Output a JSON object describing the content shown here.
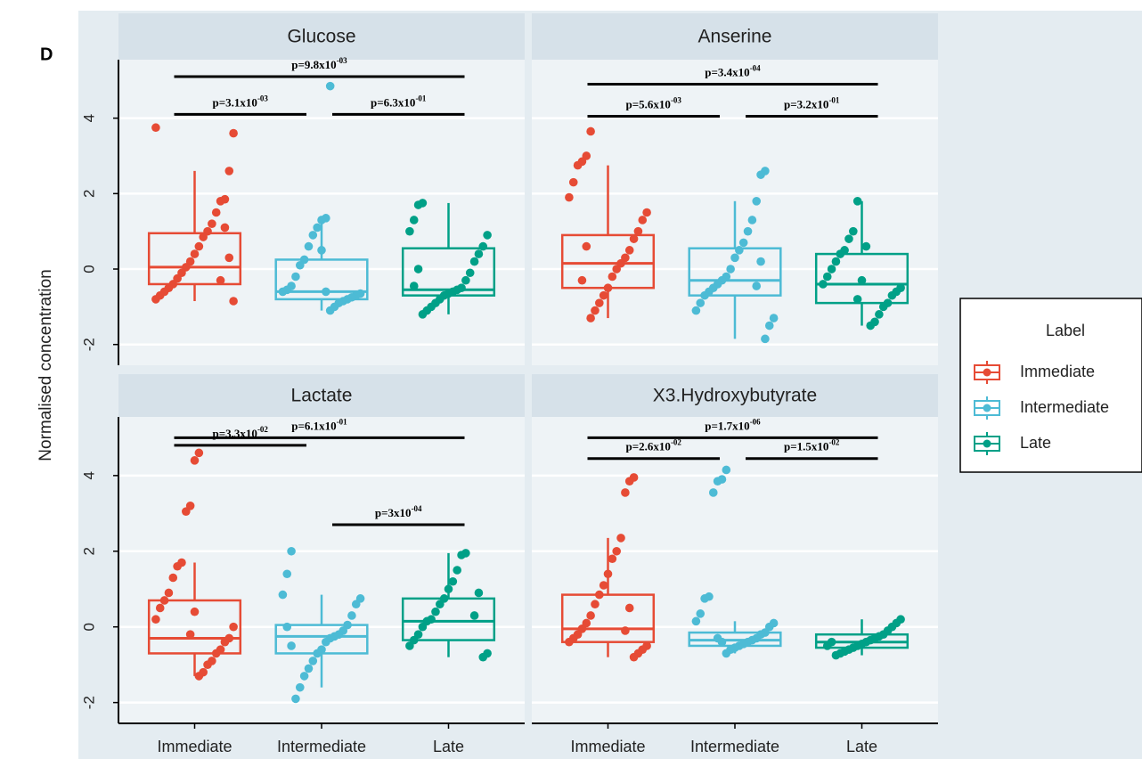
{
  "chart_data": {
    "type": "box",
    "figure_label": "D",
    "ylabel": "Normalised concentration",
    "legend_title": "Label",
    "categories": [
      "Immediate",
      "Intermediate",
      "Late"
    ],
    "series": [
      {
        "name": "Immediate",
        "color": "#e64b35"
      },
      {
        "name": "Intermediate",
        "color": "#4dbbd5"
      },
      {
        "name": "Late",
        "color": "#00a087"
      }
    ],
    "ylim": [
      -2.55,
      5.55
    ],
    "yticks": [
      -2,
      0,
      2,
      4
    ],
    "grid": true,
    "facets": [
      {
        "title": "Glucose",
        "boxes": [
          {
            "whislo": -0.85,
            "q1": -0.4,
            "med": 0.05,
            "q3": 0.95,
            "whishi": 2.6,
            "points": [
              3.75,
              3.6,
              2.6,
              1.85,
              1.8,
              1.5,
              1.2,
              1.0,
              0.85,
              0.6,
              0.4,
              0.2,
              0.05,
              -0.1,
              -0.25,
              -0.4,
              -0.5,
              -0.6,
              -0.7,
              -0.8,
              -0.85,
              0.3,
              1.1,
              -0.3
            ]
          },
          {
            "whislo": -1.1,
            "q1": -0.8,
            "med": -0.6,
            "q3": 0.25,
            "whishi": 1.35,
            "points": [
              4.85,
              1.35,
              1.3,
              1.1,
              0.9,
              0.6,
              0.25,
              0.1,
              -0.2,
              -0.45,
              -0.55,
              -0.6,
              -0.65,
              -0.7,
              -0.75,
              -0.8,
              -0.85,
              -0.9,
              -1.0,
              -1.1,
              -0.6,
              0.5
            ]
          },
          {
            "whislo": -1.2,
            "q1": -0.7,
            "med": -0.55,
            "q3": 0.55,
            "whishi": 1.75,
            "points": [
              1.75,
              1.7,
              1.3,
              1.0,
              0.9,
              0.6,
              0.4,
              0.2,
              -0.1,
              -0.3,
              -0.5,
              -0.55,
              -0.6,
              -0.65,
              -0.7,
              -0.8,
              -0.9,
              -1.0,
              -1.1,
              -1.2,
              0.0,
              -0.45
            ]
          }
        ],
        "annotations": [
          {
            "from": 0,
            "to": 2,
            "y": 5.1,
            "label": "p=9.8x10",
            "exponent": "-03"
          },
          {
            "from": 0,
            "to": 1,
            "y": 4.1,
            "label": "p=3.1x10",
            "exponent": "-03"
          },
          {
            "from": 1,
            "to": 2,
            "y": 4.1,
            "label": "p=6.3x10",
            "exponent": "-01"
          }
        ]
      },
      {
        "title": "Anserine",
        "boxes": [
          {
            "whislo": -1.3,
            "q1": -0.5,
            "med": 0.15,
            "q3": 0.9,
            "whishi": 2.75,
            "points": [
              3.65,
              3.0,
              2.85,
              2.75,
              2.3,
              1.9,
              1.5,
              1.3,
              1.0,
              0.8,
              0.5,
              0.3,
              0.15,
              0.0,
              -0.2,
              -0.5,
              -0.7,
              -0.9,
              -1.1,
              -1.3,
              0.6,
              -0.3
            ]
          },
          {
            "whislo": -1.85,
            "q1": -0.7,
            "med": -0.3,
            "q3": 0.55,
            "whishi": 1.8,
            "points": [
              2.6,
              2.5,
              1.8,
              1.3,
              1.0,
              0.7,
              0.5,
              0.3,
              0.0,
              -0.2,
              -0.3,
              -0.4,
              -0.5,
              -0.6,
              -0.7,
              -0.9,
              -1.1,
              -1.3,
              -1.5,
              -1.85,
              0.2,
              -0.45
            ]
          },
          {
            "whislo": -1.5,
            "q1": -0.9,
            "med": -0.4,
            "q3": 0.4,
            "whishi": 1.8,
            "points": [
              1.8,
              1.0,
              0.8,
              0.5,
              0.4,
              0.2,
              0.0,
              -0.2,
              -0.4,
              -0.5,
              -0.6,
              -0.7,
              -0.9,
              -1.0,
              -1.2,
              -1.4,
              -1.5,
              0.6,
              -0.3,
              -0.8
            ]
          }
        ],
        "annotations": [
          {
            "from": 0,
            "to": 2,
            "y": 4.9,
            "label": "p=3.4x10",
            "exponent": "-04"
          },
          {
            "from": 0,
            "to": 1,
            "y": 4.05,
            "label": "p=5.6x10",
            "exponent": "-03"
          },
          {
            "from": 1,
            "to": 2,
            "y": 4.05,
            "label": "p=3.2x10",
            "exponent": "-01"
          }
        ]
      },
      {
        "title": "Lactate",
        "boxes": [
          {
            "whislo": -1.3,
            "q1": -0.7,
            "med": -0.3,
            "q3": 0.7,
            "whishi": 1.7,
            "points": [
              4.6,
              4.4,
              3.2,
              3.05,
              1.7,
              1.6,
              1.3,
              0.9,
              0.7,
              0.5,
              0.2,
              0.0,
              -0.3,
              -0.4,
              -0.6,
              -0.7,
              -0.9,
              -1.0,
              -1.2,
              -1.3,
              0.4,
              -0.2
            ]
          },
          {
            "whislo": -1.6,
            "q1": -0.7,
            "med": -0.25,
            "q3": 0.05,
            "whishi": 0.85,
            "points": [
              2.0,
              1.4,
              0.85,
              0.75,
              0.6,
              0.3,
              0.05,
              -0.1,
              -0.2,
              -0.25,
              -0.3,
              -0.4,
              -0.6,
              -0.7,
              -0.9,
              -1.1,
              -1.3,
              -1.6,
              -1.9,
              -0.5,
              0.0
            ]
          },
          {
            "whislo": -0.8,
            "q1": -0.35,
            "med": 0.15,
            "q3": 0.75,
            "whishi": 1.95,
            "points": [
              1.95,
              1.9,
              1.5,
              1.2,
              1.0,
              0.75,
              0.6,
              0.4,
              0.2,
              0.15,
              0.0,
              -0.2,
              -0.35,
              -0.5,
              -0.7,
              -0.8,
              0.9,
              0.3
            ]
          }
        ],
        "annotations": [
          {
            "from": 0,
            "to": 2,
            "y": 5.0,
            "label": "p=6.1x10",
            "exponent": "-01"
          },
          {
            "from": 0,
            "to": 1,
            "y": 4.8,
            "label": "p=3.3x10",
            "exponent": "-02"
          },
          {
            "from": 1,
            "to": 2,
            "y": 2.7,
            "label": "p=3x10",
            "exponent": "-04"
          }
        ]
      },
      {
        "title": "X3.Hydroxybutyrate",
        "boxes": [
          {
            "whislo": -0.8,
            "q1": -0.4,
            "med": -0.05,
            "q3": 0.85,
            "whishi": 2.35,
            "points": [
              3.95,
              3.85,
              3.55,
              2.35,
              2.0,
              1.8,
              1.4,
              1.1,
              0.85,
              0.6,
              0.3,
              0.1,
              -0.05,
              -0.2,
              -0.3,
              -0.4,
              -0.5,
              -0.6,
              -0.7,
              -0.8,
              0.5,
              -0.1
            ]
          },
          {
            "whislo": -0.7,
            "q1": -0.5,
            "med": -0.35,
            "q3": -0.15,
            "whishi": 0.15,
            "points": [
              4.15,
              3.9,
              3.85,
              3.55,
              0.8,
              0.75,
              0.35,
              0.15,
              0.1,
              0.0,
              -0.15,
              -0.2,
              -0.3,
              -0.35,
              -0.4,
              -0.45,
              -0.5,
              -0.55,
              -0.6,
              -0.7,
              -0.4,
              -0.3
            ]
          },
          {
            "whislo": -0.75,
            "q1": -0.55,
            "med": -0.4,
            "q3": -0.2,
            "whishi": 0.2,
            "points": [
              0.2,
              0.1,
              0.0,
              -0.1,
              -0.2,
              -0.25,
              -0.3,
              -0.35,
              -0.4,
              -0.45,
              -0.5,
              -0.55,
              -0.6,
              -0.65,
              -0.7,
              -0.75,
              -0.4,
              -0.5
            ]
          }
        ],
        "annotations": [
          {
            "from": 0,
            "to": 2,
            "y": 5.0,
            "label": "p=1.7x10",
            "exponent": "-06"
          },
          {
            "from": 0,
            "to": 1,
            "y": 4.45,
            "label": "p=2.6x10",
            "exponent": "-02"
          },
          {
            "from": 1,
            "to": 2,
            "y": 4.45,
            "label": "p=1.5x10",
            "exponent": "-02"
          }
        ]
      }
    ]
  }
}
